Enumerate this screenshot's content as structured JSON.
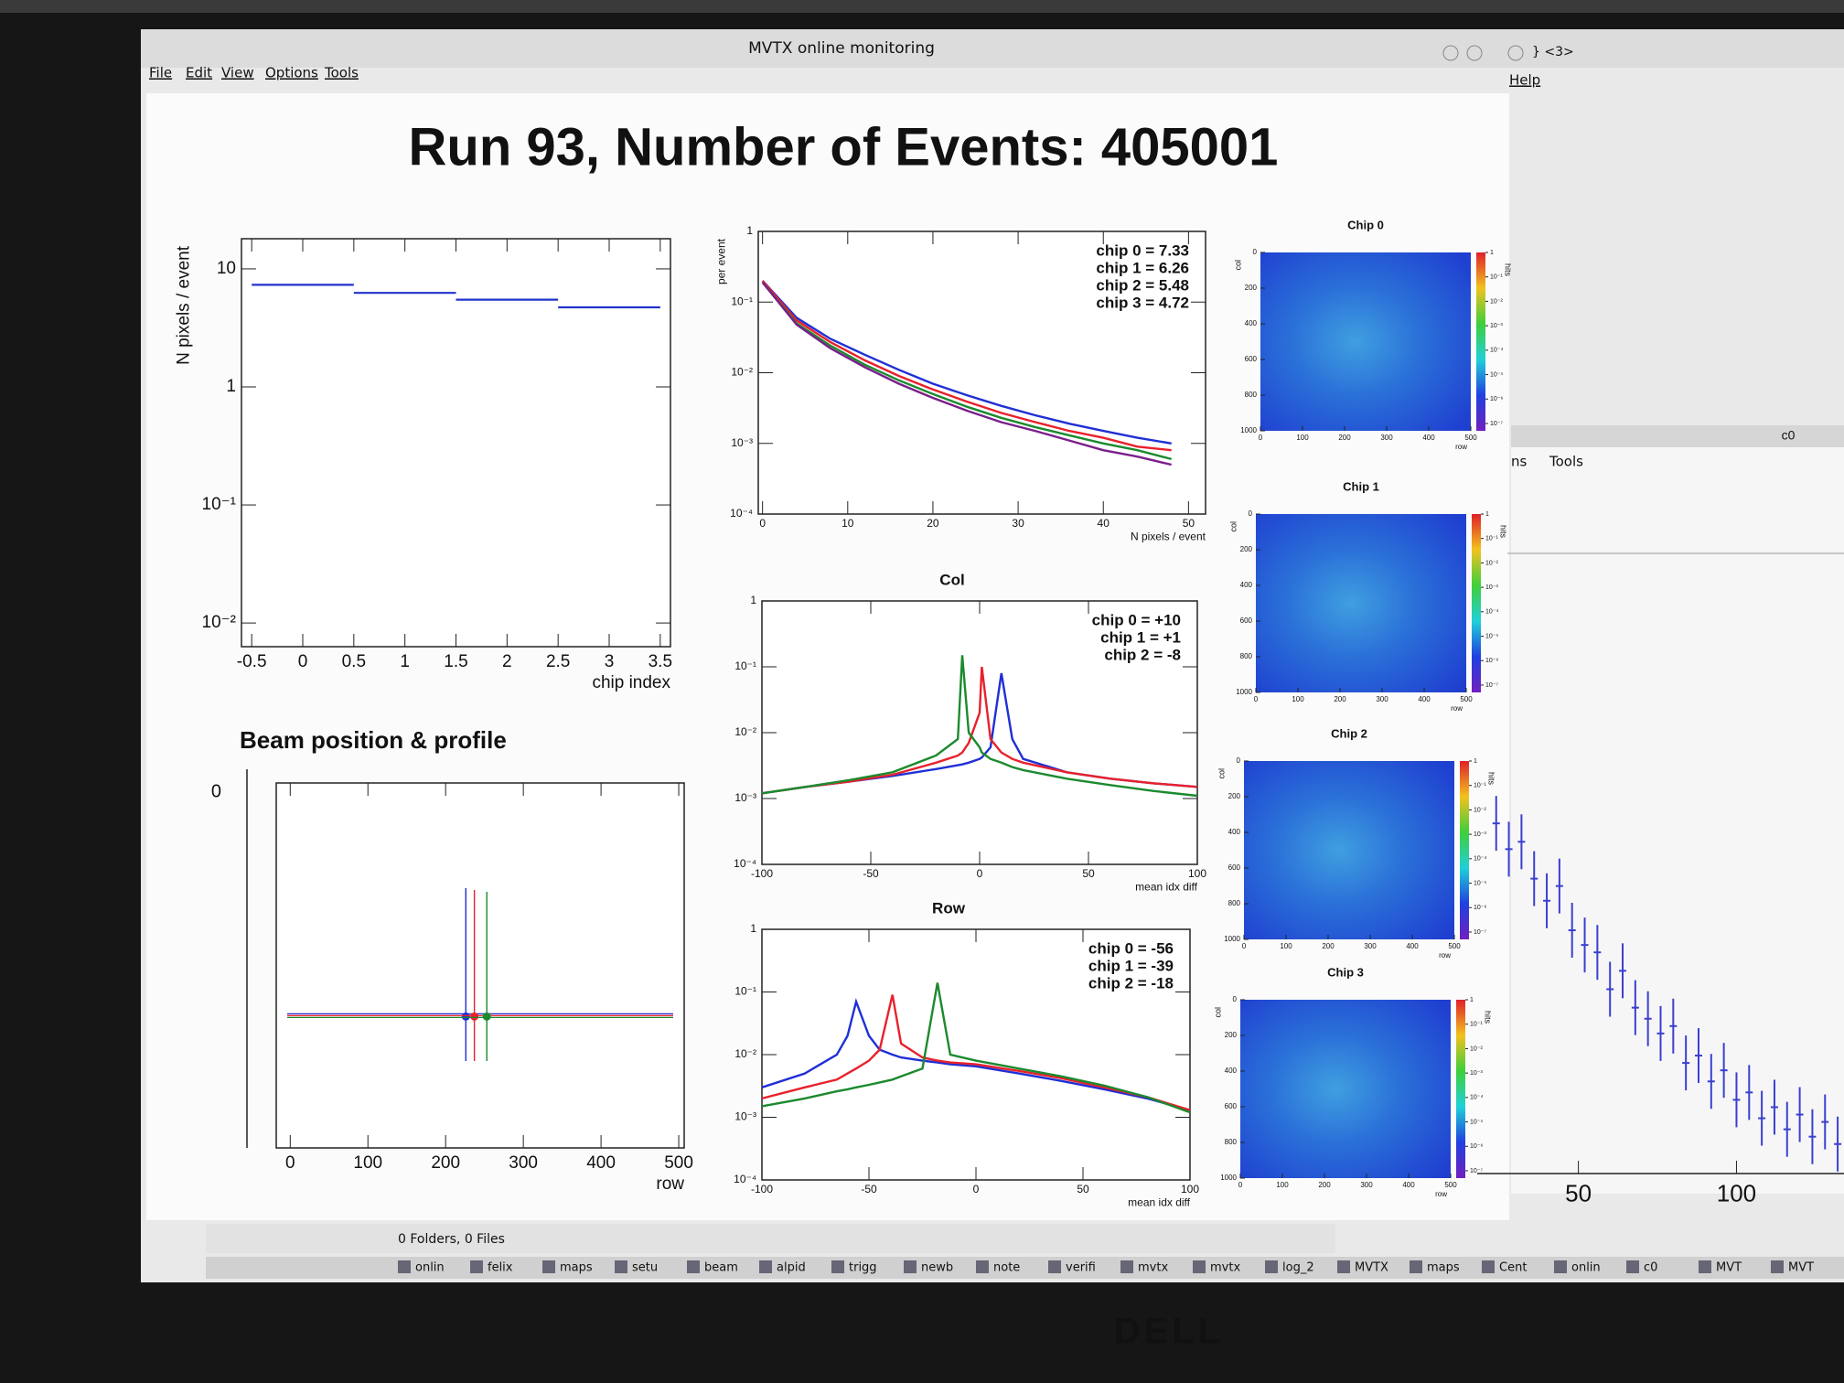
{
  "window": {
    "title": "MVTX online monitoring",
    "title_extra": "} <3>",
    "menu": [
      "File",
      "Edit",
      "View",
      "Options",
      "Tools"
    ],
    "help": "Help",
    "status": "0 Folders, 0 Files"
  },
  "main_title": "Run 93, Number of Events: 405001",
  "plots": {
    "chips": {
      "type": "step",
      "ylabel": "N pixels / event",
      "xlabel": "chip index",
      "bins": [
        -0.5,
        0.5,
        1.5,
        2.5,
        3.5
      ],
      "values": [
        7.33,
        6.26,
        5.48,
        4.72
      ],
      "color": "#2233cc",
      "xlim": [
        -0.6,
        3.6
      ],
      "xticks": [
        -0.5,
        0,
        0.5,
        1,
        1.5,
        2,
        2.5,
        3,
        3.5
      ],
      "ylim": [
        0.0063,
        18
      ],
      "yticks": [
        {
          "value": 0.01,
          "label": "10⁻²"
        },
        {
          "value": 0.1,
          "label": "10⁻¹"
        },
        1,
        10
      ],
      "log_y": true
    },
    "npix": {
      "type": "line",
      "ylabel": "per event",
      "xlabel": "N pixels / event",
      "x": [
        0,
        4,
        8,
        12,
        16,
        20,
        24,
        28,
        32,
        36,
        40,
        44,
        48
      ],
      "series": [
        {
          "name": "chip 0 = 7.33",
          "color": "#1f2fd6",
          "values": [
            0.2,
            0.06,
            0.03,
            0.018,
            0.011,
            0.007,
            0.0048,
            0.0034,
            0.0025,
            0.0019,
            0.0015,
            0.0012,
            0.001
          ]
        },
        {
          "name": "chip 1 = 6.26",
          "color": "#e8212b",
          "values": [
            0.2,
            0.055,
            0.027,
            0.015,
            0.009,
            0.0058,
            0.0039,
            0.0027,
            0.002,
            0.0015,
            0.0012,
            0.0009,
            0.0008
          ]
        },
        {
          "name": "chip 2 = 5.48",
          "color": "#1b8a2e",
          "values": [
            0.19,
            0.05,
            0.024,
            0.013,
            0.0078,
            0.005,
            0.0033,
            0.0023,
            0.0017,
            0.0013,
            0.001,
            0.0008,
            0.0006
          ]
        },
        {
          "name": "chip 3 = 4.72",
          "color": "#7a1f8a",
          "values": [
            0.19,
            0.048,
            0.022,
            0.012,
            0.007,
            0.0044,
            0.0029,
            0.002,
            0.0015,
            0.0011,
            0.0008,
            0.00065,
            0.0005
          ]
        }
      ],
      "xlim": [
        -0.5,
        52
      ],
      "xticks": [
        0,
        10,
        20,
        30,
        40,
        50
      ],
      "ylim": [
        0.0001,
        1
      ],
      "yticks": [
        {
          "value": 0.0001,
          "label": "10⁻⁴"
        },
        {
          "value": 0.001,
          "label": "10⁻³"
        },
        {
          "value": 0.01,
          "label": "10⁻²"
        },
        {
          "value": 0.1,
          "label": "10⁻¹"
        },
        1
      ],
      "log_y": true
    },
    "col": {
      "type": "line",
      "title": "Col",
      "xlabel": "mean idx diff",
      "x": [
        -100,
        -80,
        -60,
        -40,
        -20,
        -10,
        -8,
        -5,
        0,
        1,
        5,
        10,
        15,
        20,
        40,
        60,
        80,
        100
      ],
      "series": [
        {
          "name": "chip 0 = +10",
          "color": "#1f2fd6",
          "values": [
            0.0012,
            0.0015,
            0.0018,
            0.0022,
            0.0028,
            0.0032,
            0.0033,
            0.0035,
            0.004,
            0.0042,
            0.006,
            0.08,
            0.008,
            0.004,
            0.0025,
            0.002,
            0.0017,
            0.0015
          ]
        },
        {
          "name": "chip 1 = +1",
          "color": "#e8212b",
          "values": [
            0.0012,
            0.0015,
            0.0018,
            0.0023,
            0.0035,
            0.0045,
            0.005,
            0.007,
            0.02,
            0.1,
            0.008,
            0.005,
            0.004,
            0.0035,
            0.0025,
            0.002,
            0.0017,
            0.0015
          ]
        },
        {
          "name": "chip 2 = -8",
          "color": "#1b8a2e",
          "values": [
            0.0012,
            0.0015,
            0.0019,
            0.0025,
            0.0045,
            0.008,
            0.15,
            0.01,
            0.006,
            0.005,
            0.004,
            0.0035,
            0.003,
            0.0027,
            0.002,
            0.0016,
            0.0013,
            0.0011
          ]
        }
      ],
      "xlim": [
        -100,
        100
      ],
      "xticks": [
        -100,
        -50,
        0,
        50,
        100
      ],
      "ylim": [
        0.0001,
        1
      ],
      "yticks": [
        {
          "value": 0.0001,
          "label": "10⁻⁴"
        },
        {
          "value": 0.001,
          "label": "10⁻³"
        },
        {
          "value": 0.01,
          "label": "10⁻²"
        },
        {
          "value": 0.1,
          "label": "10⁻¹"
        },
        1
      ],
      "log_y": true
    },
    "row": {
      "type": "line",
      "title": "Row",
      "xlabel": "mean idx diff",
      "x": [
        -100,
        -80,
        -65,
        -60,
        -56,
        -50,
        -45,
        -39,
        -35,
        -25,
        -18,
        -12,
        0,
        20,
        40,
        60,
        80,
        100
      ],
      "series": [
        {
          "name": "chip 0 = -56",
          "color": "#1f2fd6",
          "values": [
            0.003,
            0.005,
            0.01,
            0.02,
            0.07,
            0.02,
            0.012,
            0.01,
            0.009,
            0.008,
            0.0075,
            0.007,
            0.0065,
            0.005,
            0.0038,
            0.0028,
            0.002,
            0.0013
          ]
        },
        {
          "name": "chip 1 = -39",
          "color": "#e8212b",
          "values": [
            0.002,
            0.003,
            0.004,
            0.005,
            0.006,
            0.008,
            0.012,
            0.09,
            0.015,
            0.009,
            0.008,
            0.0075,
            0.007,
            0.0055,
            0.0042,
            0.003,
            0.0021,
            0.0013
          ]
        },
        {
          "name": "chip 2 = -18",
          "color": "#1b8a2e",
          "values": [
            0.0015,
            0.002,
            0.0026,
            0.0028,
            0.003,
            0.0033,
            0.0036,
            0.004,
            0.0045,
            0.006,
            0.14,
            0.01,
            0.008,
            0.006,
            0.0045,
            0.0032,
            0.0021,
            0.0012
          ]
        }
      ],
      "xlim": [
        -100,
        100
      ],
      "xticks": [
        -100,
        -50,
        0,
        50,
        100
      ],
      "ylim": [
        0.0001,
        1
      ],
      "yticks": [
        {
          "value": 0.0001,
          "label": "10⁻⁴"
        },
        {
          "value": 0.001,
          "label": "10⁻³"
        },
        {
          "value": 0.01,
          "label": "10⁻²"
        },
        {
          "value": 0.1,
          "label": "10⁻¹"
        },
        1
      ],
      "log_y": true
    },
    "beam": {
      "type": "points",
      "title": "Beam position & profile",
      "xlabel": "row",
      "side_tick": 0,
      "x": [
        226,
        237,
        253
      ],
      "colors": [
        "#1f2fd6",
        "#e8212b",
        "#1b8a2e"
      ],
      "xlim": [
        -18,
        507
      ],
      "xticks": [
        0,
        100,
        200,
        300,
        400,
        500
      ]
    },
    "side": {
      "type": "errorbar",
      "title": "c0",
      "menu": [
        "ns",
        "Tools"
      ],
      "x": [
        24,
        28,
        32,
        36,
        40,
        44,
        48,
        52,
        56,
        60,
        64,
        68,
        72,
        76,
        80,
        84,
        88,
        92,
        96,
        100,
        104,
        108,
        112,
        116,
        120,
        124,
        128,
        132
      ],
      "values": [
        0.95,
        0.88,
        0.9,
        0.8,
        0.74,
        0.78,
        0.66,
        0.62,
        0.6,
        0.5,
        0.55,
        0.45,
        0.42,
        0.38,
        0.4,
        0.3,
        0.32,
        0.25,
        0.28,
        0.2,
        0.22,
        0.15,
        0.18,
        0.12,
        0.16,
        0.1,
        0.14,
        0.08
      ],
      "color": "#3b3fcf",
      "xlim": [
        18,
        134
      ],
      "xticks": [
        50,
        100
      ],
      "ylim": [
        0,
        1
      ]
    }
  },
  "heatmaps": {
    "chips": [
      {
        "title": "Chip 0",
        "color": "#1f2fd6"
      },
      {
        "title": "Chip 1",
        "color": "#e8212b"
      },
      {
        "title": "Chip 2",
        "color": "#1b8a2e"
      },
      {
        "title": "Chip 3",
        "color": "#7a1f8a"
      }
    ],
    "xticks": [
      0,
      100,
      200,
      300,
      400,
      500
    ],
    "yticks": [
      0,
      200,
      400,
      600,
      800,
      1000
    ],
    "ylabel": "col",
    "xlabel": "row",
    "zlabel": "hits",
    "zticks": [
      1,
      {
        "value": 0.1,
        "label": "10⁻¹"
      },
      {
        "value": 0.01,
        "label": "10⁻²"
      },
      {
        "value": 0.001,
        "label": "10⁻³"
      },
      {
        "value": 0.0001,
        "label": "10⁻⁴"
      },
      {
        "value": 1e-05,
        "label": "10⁻⁵"
      },
      {
        "value": 1e-06,
        "label": "10⁻⁶"
      },
      {
        "value": 1e-07,
        "label": "10⁻⁷"
      }
    ]
  },
  "taskbar": [
    "onlin",
    "felix",
    "maps",
    "setu",
    "beam",
    "alpid",
    "trigg",
    "newb",
    "note",
    "verifi",
    "mvtx",
    "mvtx",
    "log_2",
    "MVTX",
    "maps",
    "Cent",
    "onlin",
    "c0",
    "MVT",
    "MVT"
  ],
  "brand": "DELL"
}
